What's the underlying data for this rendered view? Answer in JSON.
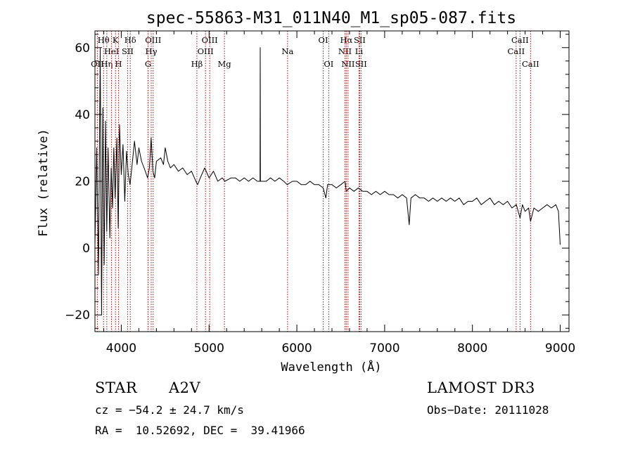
{
  "chart_data": {
    "type": "line",
    "title": "spec-55863-M31_011N40_M1_sp05-087.fits",
    "xlabel": "Wavelength (Å)",
    "ylabel": "Flux (relative)",
    "xlim": [
      3700,
      9100
    ],
    "ylim": [
      -25,
      65
    ],
    "x_ticks": [
      4000,
      5000,
      6000,
      7000,
      8000,
      9000
    ],
    "y_ticks": [
      -20,
      0,
      20,
      40,
      60
    ],
    "y_tick_labels": [
      "−20",
      "0",
      "20",
      "40",
      "60"
    ],
    "series": [
      {
        "name": "flux",
        "points": [
          [
            3700,
            1
          ],
          [
            3720,
            30
          ],
          [
            3740,
            -8
          ],
          [
            3760,
            60
          ],
          [
            3775,
            -20
          ],
          [
            3790,
            42
          ],
          [
            3805,
            -5
          ],
          [
            3820,
            38
          ],
          [
            3835,
            5
          ],
          [
            3850,
            30
          ],
          [
            3870,
            3
          ],
          [
            3885,
            24
          ],
          [
            3900,
            12
          ],
          [
            3915,
            30
          ],
          [
            3930,
            15
          ],
          [
            3950,
            33
          ],
          [
            3965,
            6
          ],
          [
            3980,
            37
          ],
          [
            4000,
            22
          ],
          [
            4020,
            31
          ],
          [
            4040,
            14
          ],
          [
            4060,
            29
          ],
          [
            4080,
            22
          ],
          [
            4100,
            19
          ],
          [
            4120,
            24
          ],
          [
            4150,
            32
          ],
          [
            4180,
            25
          ],
          [
            4200,
            30
          ],
          [
            4230,
            26
          ],
          [
            4260,
            24
          ],
          [
            4300,
            21
          ],
          [
            4320,
            24
          ],
          [
            4340,
            33
          ],
          [
            4360,
            23
          ],
          [
            4380,
            21
          ],
          [
            4400,
            26
          ],
          [
            4450,
            27
          ],
          [
            4480,
            25
          ],
          [
            4500,
            30
          ],
          [
            4530,
            26
          ],
          [
            4560,
            24
          ],
          [
            4600,
            25
          ],
          [
            4650,
            23
          ],
          [
            4700,
            24
          ],
          [
            4750,
            22
          ],
          [
            4800,
            23
          ],
          [
            4850,
            20
          ],
          [
            4870,
            19
          ],
          [
            4900,
            21
          ],
          [
            4950,
            24
          ],
          [
            5000,
            21
          ],
          [
            5050,
            23
          ],
          [
            5100,
            20
          ],
          [
            5150,
            21
          ],
          [
            5180,
            20
          ],
          [
            5250,
            21
          ],
          [
            5300,
            21
          ],
          [
            5350,
            20
          ],
          [
            5400,
            21
          ],
          [
            5450,
            20
          ],
          [
            5500,
            21
          ],
          [
            5550,
            20
          ],
          [
            5580,
            20
          ],
          [
            5583,
            60
          ],
          [
            5585,
            20
          ],
          [
            5600,
            20
          ],
          [
            5650,
            20
          ],
          [
            5700,
            21
          ],
          [
            5750,
            20
          ],
          [
            5800,
            21
          ],
          [
            5850,
            20
          ],
          [
            5890,
            19
          ],
          [
            5950,
            20
          ],
          [
            6000,
            20
          ],
          [
            6050,
            19
          ],
          [
            6100,
            19
          ],
          [
            6150,
            20
          ],
          [
            6200,
            19
          ],
          [
            6250,
            19
          ],
          [
            6300,
            18
          ],
          [
            6330,
            15
          ],
          [
            6350,
            19
          ],
          [
            6400,
            19
          ],
          [
            6450,
            18
          ],
          [
            6500,
            19
          ],
          [
            6550,
            20
          ],
          [
            6563,
            17
          ],
          [
            6600,
            18
          ],
          [
            6650,
            17
          ],
          [
            6700,
            18
          ],
          [
            6750,
            17
          ],
          [
            6800,
            17
          ],
          [
            6850,
            16
          ],
          [
            6900,
            17
          ],
          [
            6950,
            16
          ],
          [
            7000,
            17
          ],
          [
            7050,
            16
          ],
          [
            7100,
            16
          ],
          [
            7150,
            15
          ],
          [
            7200,
            16
          ],
          [
            7250,
            15
          ],
          [
            7280,
            7
          ],
          [
            7300,
            15
          ],
          [
            7350,
            16
          ],
          [
            7400,
            15
          ],
          [
            7450,
            15
          ],
          [
            7500,
            14
          ],
          [
            7550,
            15
          ],
          [
            7600,
            14
          ],
          [
            7650,
            15
          ],
          [
            7700,
            14
          ],
          [
            7750,
            15
          ],
          [
            7800,
            14
          ],
          [
            7850,
            15
          ],
          [
            7900,
            13
          ],
          [
            7950,
            14
          ],
          [
            8000,
            14
          ],
          [
            8050,
            15
          ],
          [
            8100,
            13
          ],
          [
            8150,
            14
          ],
          [
            8200,
            15
          ],
          [
            8250,
            13
          ],
          [
            8300,
            14
          ],
          [
            8350,
            13
          ],
          [
            8400,
            14
          ],
          [
            8450,
            12
          ],
          [
            8500,
            13
          ],
          [
            8542,
            9
          ],
          [
            8570,
            13
          ],
          [
            8600,
            11
          ],
          [
            8640,
            12
          ],
          [
            8662,
            8
          ],
          [
            8700,
            12
          ],
          [
            8750,
            11
          ],
          [
            8800,
            12
          ],
          [
            8850,
            13
          ],
          [
            8900,
            12
          ],
          [
            8950,
            13
          ],
          [
            8980,
            11
          ],
          [
            9000,
            1
          ]
        ]
      }
    ],
    "line_markers": [
      {
        "label": "OII",
        "x": 3727,
        "row": 3
      },
      {
        "label": "Hθ",
        "x": 3798,
        "row": 1
      },
      {
        "label": "Hη",
        "x": 3835,
        "row": 3
      },
      {
        "label": "HeI",
        "x": 3889,
        "row": 2
      },
      {
        "label": "K",
        "x": 3934,
        "row": 1
      },
      {
        "label": "H",
        "x": 3969,
        "row": 3
      },
      {
        "label": "SII",
        "x": 4072,
        "row": 2
      },
      {
        "label": "Hδ",
        "x": 4102,
        "row": 1
      },
      {
        "label": "G",
        "x": 4305,
        "row": 3
      },
      {
        "label": "OIII",
        "x": 4363,
        "row": 1
      },
      {
        "label": "Hγ",
        "x": 4341,
        "row": 2
      },
      {
        "label": "Hβ",
        "x": 4861,
        "row": 3
      },
      {
        "label": "OIII",
        "x": 4959,
        "row": 2
      },
      {
        "label": "OIII",
        "x": 5007,
        "row": 1
      },
      {
        "label": "Mg",
        "x": 5175,
        "row": 3
      },
      {
        "label": "Na",
        "x": 5894,
        "row": 2
      },
      {
        "label": "OI",
        "x": 6300,
        "row": 1
      },
      {
        "label": "OI",
        "x": 6363,
        "row": 3
      },
      {
        "label": "NII",
        "x": 6548,
        "row": 2
      },
      {
        "label": "Hα",
        "x": 6563,
        "row": 1
      },
      {
        "label": "NII",
        "x": 6583,
        "row": 3
      },
      {
        "label": "Li",
        "x": 6708,
        "row": 2
      },
      {
        "label": "SII",
        "x": 6716,
        "row": 1
      },
      {
        "label": "SII",
        "x": 6731,
        "row": 3
      },
      {
        "label": "CaII",
        "x": 8498,
        "row": 2
      },
      {
        "label": "CaII",
        "x": 8542,
        "row": 1
      },
      {
        "label": "CaII",
        "x": 8662,
        "row": 3
      }
    ]
  },
  "info": {
    "class": "STAR",
    "subclass": "A2V",
    "survey": "LAMOST DR3",
    "cz": "cz = −54.2 ± 24.7 km/s",
    "obs_date": "Obs−Date: 20111028",
    "radec": "RA =  10.52692, DEC =  39.41966"
  },
  "colors": {
    "line": "#000000",
    "marker": "#c00000",
    "axis": "#000000",
    "background": "#ffffff"
  }
}
